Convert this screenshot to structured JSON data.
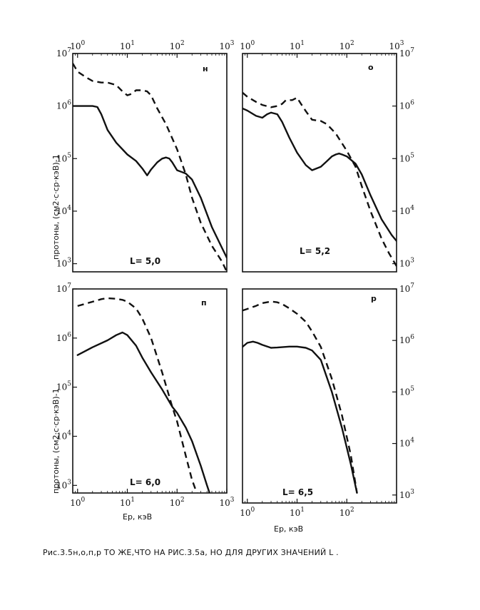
{
  "caption": "Рис.3.5н,о,п,р ТО ЖЕ,ЧТО НА РИС.3.5а, НО ДЛЯ ДРУГИХ ЗНАЧЕНИЙ L .",
  "colors": {
    "ink": "#111111",
    "background": "#ffffff"
  },
  "line_styles": {
    "series_1": "solid",
    "series_2": "dashed"
  },
  "chart_data": [
    {
      "type": "line",
      "panel": "н",
      "annotation": "L= 5,0",
      "xlabel": "",
      "ylabel": "протоны, (см2·с·ср·кэВ)-1",
      "xscale": "log",
      "yscale": "log",
      "xlim": [
        0.8,
        1000
      ],
      "ylim": [
        700,
        10000000
      ],
      "x_ticks_top": [
        "10^0",
        "10^1",
        "10^2",
        "10^3"
      ],
      "y_ticks_left": [
        "10^3",
        "10^4",
        "10^5",
        "10^6",
        "10^7"
      ],
      "series": [
        {
          "style": "solid",
          "x": [
            0.8,
            1,
            1.5,
            2,
            2.5,
            3,
            4,
            6,
            10,
            15,
            20,
            25,
            30,
            40,
            50,
            60,
            70,
            80,
            100,
            150,
            200,
            300,
            500,
            800,
            1000
          ],
          "y": [
            1000000,
            1000000,
            1000000,
            1000000,
            960000,
            700000,
            350000,
            200000,
            120000,
            90000,
            65000,
            48000,
            62000,
            85000,
            100000,
            105000,
            100000,
            85000,
            60000,
            52000,
            40000,
            18000,
            5000,
            2000,
            1300
          ]
        },
        {
          "style": "dashed",
          "x": [
            0.8,
            1,
            1.5,
            2,
            3,
            4,
            6,
            8,
            10,
            12,
            15,
            20,
            25,
            30,
            40,
            60,
            100,
            150,
            200,
            300,
            500,
            800,
            1000
          ],
          "y": [
            6500000,
            4500000,
            3500000,
            3000000,
            2800000,
            2800000,
            2500000,
            1900000,
            1600000,
            1700000,
            2000000,
            2000000,
            1900000,
            1600000,
            900000,
            450000,
            150000,
            50000,
            18000,
            6000,
            2200,
            1100,
            700
          ]
        }
      ]
    },
    {
      "type": "line",
      "panel": "о",
      "annotation": "L= 5,2",
      "xscale": "log",
      "yscale": "log",
      "xlim": [
        0.8,
        1000
      ],
      "ylim": [
        700,
        10000000
      ],
      "x_ticks_top": [
        "10^0",
        "10^1",
        "10^2",
        "10^3"
      ],
      "y_ticks_right": [
        "10^3",
        "10^4",
        "10^5",
        "10^6",
        "10^7"
      ],
      "series": [
        {
          "style": "solid",
          "x": [
            0.8,
            1,
            1.5,
            2,
            2.5,
            3,
            4,
            5,
            7,
            10,
            15,
            20,
            30,
            40,
            50,
            60,
            70,
            80,
            100,
            150,
            200,
            300,
            500,
            800,
            1000
          ],
          "y": [
            900000,
            820000,
            650000,
            600000,
            700000,
            750000,
            700000,
            500000,
            250000,
            130000,
            75000,
            60000,
            70000,
            90000,
            110000,
            120000,
            125000,
            120000,
            110000,
            80000,
            50000,
            20000,
            7000,
            3500,
            2700
          ]
        },
        {
          "style": "dashed",
          "x": [
            0.8,
            1,
            1.5,
            2,
            3,
            4,
            5,
            6,
            8,
            10,
            12,
            15,
            20,
            30,
            40,
            60,
            100,
            150,
            200,
            300,
            500,
            700,
            1000
          ],
          "y": [
            1800000,
            1500000,
            1200000,
            1050000,
            950000,
            1000000,
            1100000,
            1300000,
            1300000,
            1450000,
            1100000,
            800000,
            550000,
            520000,
            450000,
            300000,
            140000,
            70000,
            30000,
            10000,
            3000,
            1600,
            900
          ]
        }
      ]
    },
    {
      "type": "line",
      "panel": "п",
      "annotation": "L= 6,0",
      "xlabel": "Ep, кэВ",
      "ylabel": "протоны, (см2·с·ср·кэВ)-1",
      "xscale": "log",
      "yscale": "log",
      "xlim": [
        0.8,
        1000
      ],
      "ylim": [
        700,
        10000000
      ],
      "x_ticks_bottom": [
        "10^0",
        "10^1",
        "10^2",
        "10^3"
      ],
      "y_ticks_left": [
        "10^3",
        "10^4",
        "10^5",
        "10^6",
        "10^7"
      ],
      "series": [
        {
          "style": "solid",
          "x": [
            1,
            2,
            4,
            6,
            8,
            10,
            15,
            20,
            30,
            50,
            80,
            100,
            150,
            200,
            300,
            400,
            450
          ],
          "y": [
            450000,
            650000,
            900000,
            1150000,
            1300000,
            1150000,
            700000,
            400000,
            200000,
            90000,
            40000,
            30000,
            15000,
            8000,
            2500,
            1000,
            700
          ]
        },
        {
          "style": "dashed",
          "x": [
            1,
            2,
            3,
            4,
            6,
            8,
            10,
            15,
            20,
            30,
            50,
            80,
            100,
            150,
            200,
            250
          ],
          "y": [
            4500000,
            5500000,
            6200000,
            6500000,
            6300000,
            6000000,
            5500000,
            4000000,
            2500000,
            1000000,
            200000,
            40000,
            20000,
            4000,
            1300,
            700
          ]
        }
      ]
    },
    {
      "type": "line",
      "panel": "р",
      "annotation": "L= 6,5",
      "xlabel": "Ep, кэВ",
      "xscale": "log",
      "yscale": "log",
      "xlim": [
        0.8,
        1000
      ],
      "ylim": [
        700,
        10000000
      ],
      "x_ticks_bottom": [
        "10^0",
        "10^1",
        "10^2"
      ],
      "y_ticks_right": [
        "10^3",
        "10^4",
        "10^5",
        "10^6",
        "10^7"
      ],
      "series": [
        {
          "style": "solid",
          "x": [
            0.8,
            1,
            1.3,
            1.6,
            2,
            3,
            4,
            5,
            7,
            10,
            15,
            20,
            30,
            50,
            80,
            120,
            160
          ],
          "y": [
            750000,
            900000,
            950000,
            900000,
            820000,
            720000,
            730000,
            740000,
            760000,
            760000,
            720000,
            640000,
            420000,
            100000,
            20000,
            4000,
            1100
          ]
        },
        {
          "style": "dashed",
          "x": [
            0.8,
            1,
            1.5,
            2,
            3,
            4,
            5,
            7,
            10,
            15,
            20,
            30,
            50,
            80,
            120,
            160
          ],
          "y": [
            3800000,
            4100000,
            4700000,
            5300000,
            5700000,
            5500000,
            5100000,
            4200000,
            3300000,
            2300000,
            1500000,
            750000,
            180000,
            35000,
            6000,
            1100
          ]
        }
      ]
    }
  ]
}
